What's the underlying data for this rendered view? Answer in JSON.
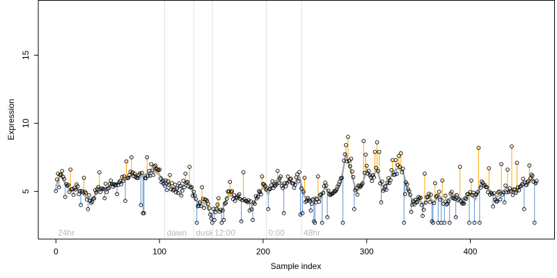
{
  "chart_data": {
    "type": "scatter",
    "xlabel": "Sample index",
    "ylabel": "Expression",
    "xlim": [
      -17,
      481
    ],
    "ylim": [
      1.5,
      19.0
    ],
    "x_ticks": [
      0,
      100,
      200,
      300,
      400
    ],
    "y_ticks": [
      5,
      10,
      15
    ],
    "grid": false,
    "legend": "none",
    "baseline_series": "smoothed trend (grey line)",
    "colors": {
      "above_baseline": "#ffa500",
      "below_baseline": "#5b8fd6",
      "trend": "#a9a9a9",
      "region_line": "#e0e0e0",
      "region_label": "#b8b8b8",
      "point_stroke": "#000000"
    },
    "regions": [
      {
        "label": "24hr",
        "start": 0
      },
      {
        "label": "dawn",
        "start": 105
      },
      {
        "label": "dusk",
        "start": 133
      },
      {
        "label": "12:00",
        "start": 151
      },
      {
        "label": "0:00",
        "start": 203
      },
      {
        "label": "48hr",
        "start": 237
      }
    ],
    "anchors": [
      [
        0,
        5.4
      ],
      [
        5,
        6.2
      ],
      [
        10,
        5.4
      ],
      [
        15,
        5.0
      ],
      [
        20,
        5.2
      ],
      [
        25,
        4.9
      ],
      [
        30,
        4.5
      ],
      [
        35,
        4.4
      ],
      [
        40,
        5.0
      ],
      [
        45,
        5.2
      ],
      [
        50,
        5.3
      ],
      [
        55,
        5.6
      ],
      [
        60,
        5.6
      ],
      [
        65,
        5.8
      ],
      [
        70,
        6.0
      ],
      [
        75,
        6.3
      ],
      [
        80,
        6.0
      ],
      [
        85,
        6.2
      ],
      [
        90,
        6.4
      ],
      [
        95,
        6.5
      ],
      [
        100,
        6.2
      ],
      [
        105,
        5.8
      ],
      [
        110,
        5.4
      ],
      [
        115,
        5.2
      ],
      [
        120,
        5.3
      ],
      [
        125,
        5.6
      ],
      [
        130,
        5.5
      ],
      [
        135,
        4.3
      ],
      [
        140,
        4.2
      ],
      [
        145,
        4.1
      ],
      [
        150,
        3.2
      ],
      [
        155,
        3.8
      ],
      [
        160,
        3.5
      ],
      [
        165,
        4.6
      ],
      [
        170,
        4.7
      ],
      [
        175,
        4.5
      ],
      [
        180,
        4.4
      ],
      [
        185,
        4.2
      ],
      [
        190,
        4.0
      ],
      [
        195,
        4.8
      ],
      [
        200,
        5.3
      ],
      [
        205,
        4.8
      ],
      [
        210,
        5.6
      ],
      [
        215,
        6.0
      ],
      [
        220,
        5.4
      ],
      [
        225,
        5.8
      ],
      [
        230,
        5.6
      ],
      [
        235,
        6.1
      ],
      [
        240,
        4.6
      ],
      [
        245,
        4.3
      ],
      [
        250,
        4.6
      ],
      [
        255,
        4.4
      ],
      [
        260,
        5.3
      ],
      [
        265,
        4.8
      ],
      [
        270,
        4.9
      ],
      [
        275,
        5.6
      ],
      [
        280,
        7.8
      ],
      [
        285,
        6.4
      ],
      [
        290,
        5.0
      ],
      [
        295,
        5.3
      ],
      [
        300,
        6.6
      ],
      [
        305,
        6.0
      ],
      [
        310,
        6.6
      ],
      [
        315,
        5.4
      ],
      [
        320,
        5.5
      ],
      [
        325,
        6.4
      ],
      [
        330,
        6.7
      ],
      [
        335,
        6.5
      ],
      [
        340,
        5.0
      ],
      [
        345,
        4.2
      ],
      [
        350,
        4.5
      ],
      [
        355,
        4.0
      ],
      [
        360,
        4.6
      ],
      [
        365,
        4.2
      ],
      [
        370,
        4.7
      ],
      [
        375,
        4.3
      ],
      [
        380,
        4.5
      ],
      [
        385,
        4.8
      ],
      [
        390,
        4.5
      ],
      [
        395,
        4.4
      ],
      [
        400,
        4.8
      ],
      [
        405,
        4.4
      ],
      [
        410,
        5.6
      ],
      [
        415,
        5.4
      ],
      [
        420,
        5.0
      ],
      [
        425,
        4.6
      ],
      [
        430,
        4.8
      ],
      [
        435,
        5.3
      ],
      [
        440,
        5.0
      ],
      [
        445,
        4.9
      ],
      [
        450,
        5.7
      ],
      [
        455,
        5.4
      ],
      [
        460,
        6.0
      ],
      [
        464,
        5.5
      ]
    ],
    "spikes": [
      [
        2,
        6.3
      ],
      [
        6,
        6.5
      ],
      [
        14,
        6.6
      ],
      [
        27,
        6.0
      ],
      [
        42,
        6.4
      ],
      [
        68,
        7.2
      ],
      [
        73,
        7.5
      ],
      [
        88,
        7.5
      ],
      [
        92,
        7.0
      ],
      [
        96,
        6.9
      ],
      [
        100,
        6.6
      ],
      [
        110,
        6.2
      ],
      [
        125,
        6.3
      ],
      [
        129,
        6.8
      ],
      [
        141,
        5.3
      ],
      [
        157,
        4.5
      ],
      [
        168,
        5.7
      ],
      [
        181,
        6.4
      ],
      [
        199,
        6.1
      ],
      [
        214,
        6.5
      ],
      [
        240,
        6.0
      ],
      [
        253,
        6.1
      ],
      [
        273,
        5.5
      ],
      [
        280,
        8.4
      ],
      [
        282,
        9.0
      ],
      [
        285,
        7.4
      ],
      [
        297,
        8.7
      ],
      [
        299,
        7.7
      ],
      [
        308,
        7.9
      ],
      [
        310,
        8.6
      ],
      [
        312,
        7.9
      ],
      [
        325,
        7.3
      ],
      [
        328,
        7.3
      ],
      [
        331,
        7.6
      ],
      [
        333,
        7.8
      ],
      [
        356,
        6.3
      ],
      [
        366,
        5.6
      ],
      [
        373,
        5.8
      ],
      [
        390,
        6.8
      ],
      [
        401,
        5.8
      ],
      [
        408,
        8.2
      ],
      [
        418,
        6.7
      ],
      [
        430,
        7.0
      ],
      [
        436,
        6.6
      ],
      [
        440,
        8.3
      ],
      [
        445,
        7.1
      ],
      [
        457,
        6.9
      ],
      [
        463,
        5.6
      ]
    ],
    "dips": [
      [
        3,
        5.3
      ],
      [
        9,
        4.6
      ],
      [
        24,
        4.0
      ],
      [
        31,
        3.7
      ],
      [
        47,
        4.5
      ],
      [
        59,
        4.8
      ],
      [
        67,
        4.3
      ],
      [
        82,
        4.0
      ],
      [
        84,
        3.4
      ],
      [
        85,
        3.4
      ],
      [
        107,
        5.1
      ],
      [
        121,
        4.7
      ],
      [
        136,
        2.7
      ],
      [
        139,
        4.2
      ],
      [
        149,
        3.3
      ],
      [
        151,
        2.7
      ],
      [
        153,
        2.9
      ],
      [
        160,
        2.7
      ],
      [
        162,
        2.9
      ],
      [
        179,
        2.8
      ],
      [
        187,
        3.6
      ],
      [
        190,
        2.9
      ],
      [
        205,
        3.7
      ],
      [
        220,
        3.4
      ],
      [
        236,
        3.3
      ],
      [
        238,
        3.4
      ],
      [
        246,
        3.6
      ],
      [
        249,
        2.8
      ],
      [
        250,
        2.7
      ],
      [
        257,
        2.7
      ],
      [
        262,
        3.1
      ],
      [
        277,
        2.7
      ],
      [
        288,
        3.7
      ],
      [
        314,
        4.2
      ],
      [
        336,
        2.7
      ],
      [
        337,
        4.8
      ],
      [
        343,
        3.5
      ],
      [
        354,
        3.2
      ],
      [
        363,
        2.8
      ],
      [
        364,
        2.7
      ],
      [
        369,
        2.7
      ],
      [
        372,
        2.7
      ],
      [
        375,
        2.7
      ],
      [
        380,
        2.7
      ],
      [
        386,
        3.1
      ],
      [
        399,
        2.7
      ],
      [
        404,
        2.7
      ],
      [
        409,
        2.7
      ],
      [
        422,
        3.9
      ],
      [
        433,
        4.2
      ],
      [
        444,
        4.9
      ],
      [
        452,
        3.7
      ],
      [
        462,
        2.7
      ]
    ]
  }
}
